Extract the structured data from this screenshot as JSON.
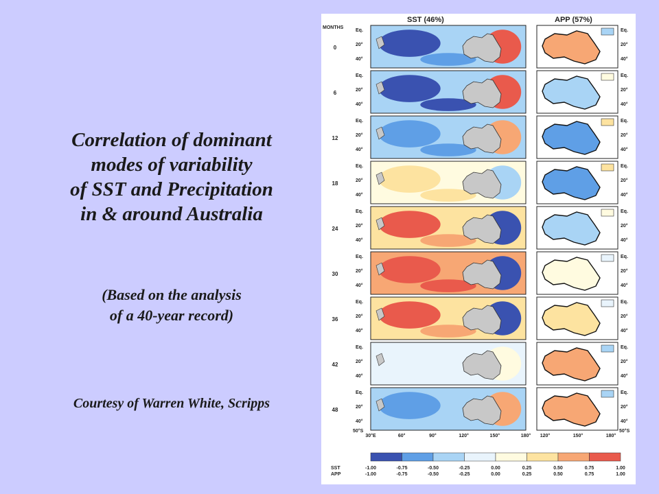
{
  "slide": {
    "title_lines": [
      "Correlation of  dominant",
      "modes of variability",
      "of SST and Precipitation",
      "in & around Australia"
    ],
    "subtitle_lines": [
      "(Based on the analysis",
      "of a 40-year record)"
    ],
    "credit": "Courtesy of Warren White, Scripps"
  },
  "figure": {
    "sst_title": "SST (46%)",
    "app_title": "APP (57%)",
    "months_header": "MONTHS",
    "months": [
      "0",
      "6",
      "12",
      "18",
      "24",
      "30",
      "36",
      "42",
      "48"
    ],
    "lat_labels": [
      "Eq.",
      "20°",
      "40°"
    ],
    "south_label": "50°S",
    "sst_lon_labels": [
      "30°E",
      "60°",
      "90°",
      "120°",
      "150°",
      "180°"
    ],
    "app_lon_labels": [
      "120°",
      "150°",
      "180°"
    ],
    "colorbar": {
      "sst_label": "SST",
      "app_label": "APP",
      "sst_ticks": [
        "-1.00",
        "-0.75",
        "-0.50",
        "-0.25",
        "0.00",
        "0.25",
        "0.50",
        "0.75",
        "1.00"
      ],
      "app_ticks": [
        "-1.00",
        "-0.75",
        "-0.50",
        "-0.25",
        "0.00",
        "0.25",
        "0.50",
        "0.75",
        "1.00"
      ],
      "colors": [
        "#3a52b0",
        "#5f9fe6",
        "#a9d4f5",
        "#e9f4fc",
        "#fffbe0",
        "#fde3a0",
        "#f7a774",
        "#e95a4c"
      ]
    },
    "panel_states": [
      {
        "sst": -0.9,
        "app": 0.6
      },
      {
        "sst": -1.0,
        "app": -0.3
      },
      {
        "sst": -0.7,
        "app": -0.6
      },
      {
        "sst": 0.4,
        "app": -0.7
      },
      {
        "sst": 0.9,
        "app": -0.3
      },
      {
        "sst": 1.0,
        "app": 0.2
      },
      {
        "sst": 0.8,
        "app": 0.4
      },
      {
        "sst": -0.2,
        "app": 0.6
      },
      {
        "sst": -0.6,
        "app": 0.7
      }
    ]
  }
}
